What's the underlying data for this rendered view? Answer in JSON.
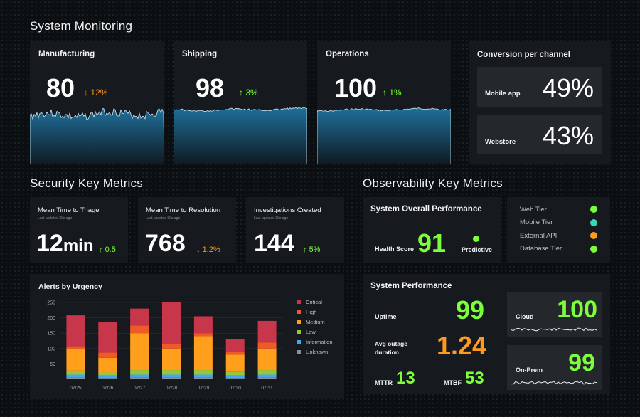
{
  "header": {
    "title": "System Monitoring"
  },
  "top_cards": [
    {
      "title": "Manufacturing",
      "value": "80",
      "delta": "12%",
      "direction": "down",
      "arrow": "↓"
    },
    {
      "title": "Shipping",
      "value": "98",
      "delta": "3%",
      "direction": "up",
      "arrow": "↑"
    },
    {
      "title": "Operations",
      "value": "100",
      "delta": "1%",
      "direction": "up",
      "arrow": "↑"
    }
  ],
  "conversion": {
    "title": "Conversion per channel",
    "channels": [
      {
        "label": "Mobile app",
        "value": "49%"
      },
      {
        "label": "Webstore",
        "value": "43%"
      }
    ]
  },
  "security": {
    "title": "Security Key Metrics",
    "metrics": [
      {
        "title": "Mean Time to Triage",
        "updated": "Last updated 30s ago",
        "value": "12",
        "unit": "min",
        "delta": "0.5",
        "direction": "up",
        "arrow": "↑"
      },
      {
        "title": "Mean Time to Resolution",
        "updated": "Last updated 30s ago",
        "value": "768",
        "unit": "",
        "delta": "1.2%",
        "direction": "down",
        "arrow": "↓"
      },
      {
        "title": "Investigations Created",
        "updated": "Last updated 30s ago",
        "value": "144",
        "unit": "",
        "delta": "5%",
        "direction": "up",
        "arrow": "↑"
      }
    ]
  },
  "alerts": {
    "title": "Alerts by Urgency"
  },
  "chart_data": {
    "type": "bar",
    "stacked": true,
    "title": "Alerts by Urgency",
    "categories": [
      "07/25",
      "07/26",
      "07/27",
      "07/28",
      "07/29",
      "07/30",
      "07/31"
    ],
    "ylim": [
      0,
      250
    ],
    "yticks": [
      50,
      100,
      150,
      200,
      250
    ],
    "grid": true,
    "legend_position": "right",
    "series": [
      {
        "name": "Unknown",
        "color": "#8a8f95",
        "values": [
          5,
          4,
          5,
          5,
          5,
          4,
          5
        ]
      },
      {
        "name": "Information",
        "color": "#3fa9f5",
        "values": [
          10,
          8,
          10,
          10,
          10,
          8,
          10
        ]
      },
      {
        "name": "Low",
        "color": "#9bc53d",
        "values": [
          13,
          10,
          15,
          15,
          15,
          13,
          15
        ]
      },
      {
        "name": "Medium",
        "color": "#ff9f1c",
        "values": [
          70,
          48,
          120,
          70,
          110,
          55,
          70
        ]
      },
      {
        "name": "High",
        "color": "#f05a28",
        "values": [
          10,
          17,
          25,
          15,
          10,
          10,
          20
        ]
      },
      {
        "name": "Critical",
        "color": "#c7364a",
        "values": [
          100,
          100,
          55,
          135,
          55,
          40,
          70
        ]
      }
    ],
    "legend_order": [
      "Critical",
      "High",
      "Medium",
      "Low",
      "Information",
      "Unknown"
    ]
  },
  "observability": {
    "title": "Observability Key Metrics",
    "overall": {
      "title": "System Overall Performance",
      "health_label": "Health Score",
      "health_value": "91",
      "predictive_label": "Predictive",
      "predictive_color": "#7cff3a"
    },
    "tiers": [
      {
        "label": "Web Tier",
        "color": "#7cff3a"
      },
      {
        "label": "Mobile Tier",
        "color": "#3ad6b8"
      },
      {
        "label": "External API",
        "color": "#ff9a1f"
      },
      {
        "label": "Database Tier",
        "color": "#7cff3a"
      }
    ],
    "performance": {
      "title": "System Performance",
      "uptime_label": "Uptime",
      "uptime_value": "99",
      "outage_label": "Avg outage duration",
      "outage_value": "1.24",
      "mttr_label": "MTTR",
      "mttr_value": "13",
      "mtbf_label": "MTBF",
      "mtbf_value": "53"
    },
    "cloud": {
      "label": "Cloud",
      "value": "100"
    },
    "onprem": {
      "label": "On-Prem",
      "value": "99"
    }
  },
  "colors": {
    "accent_green": "#7cff3a",
    "accent_orange": "#ff9a1f",
    "card_bg": "#16191d",
    "wave_blue": "#1f6f9a"
  }
}
